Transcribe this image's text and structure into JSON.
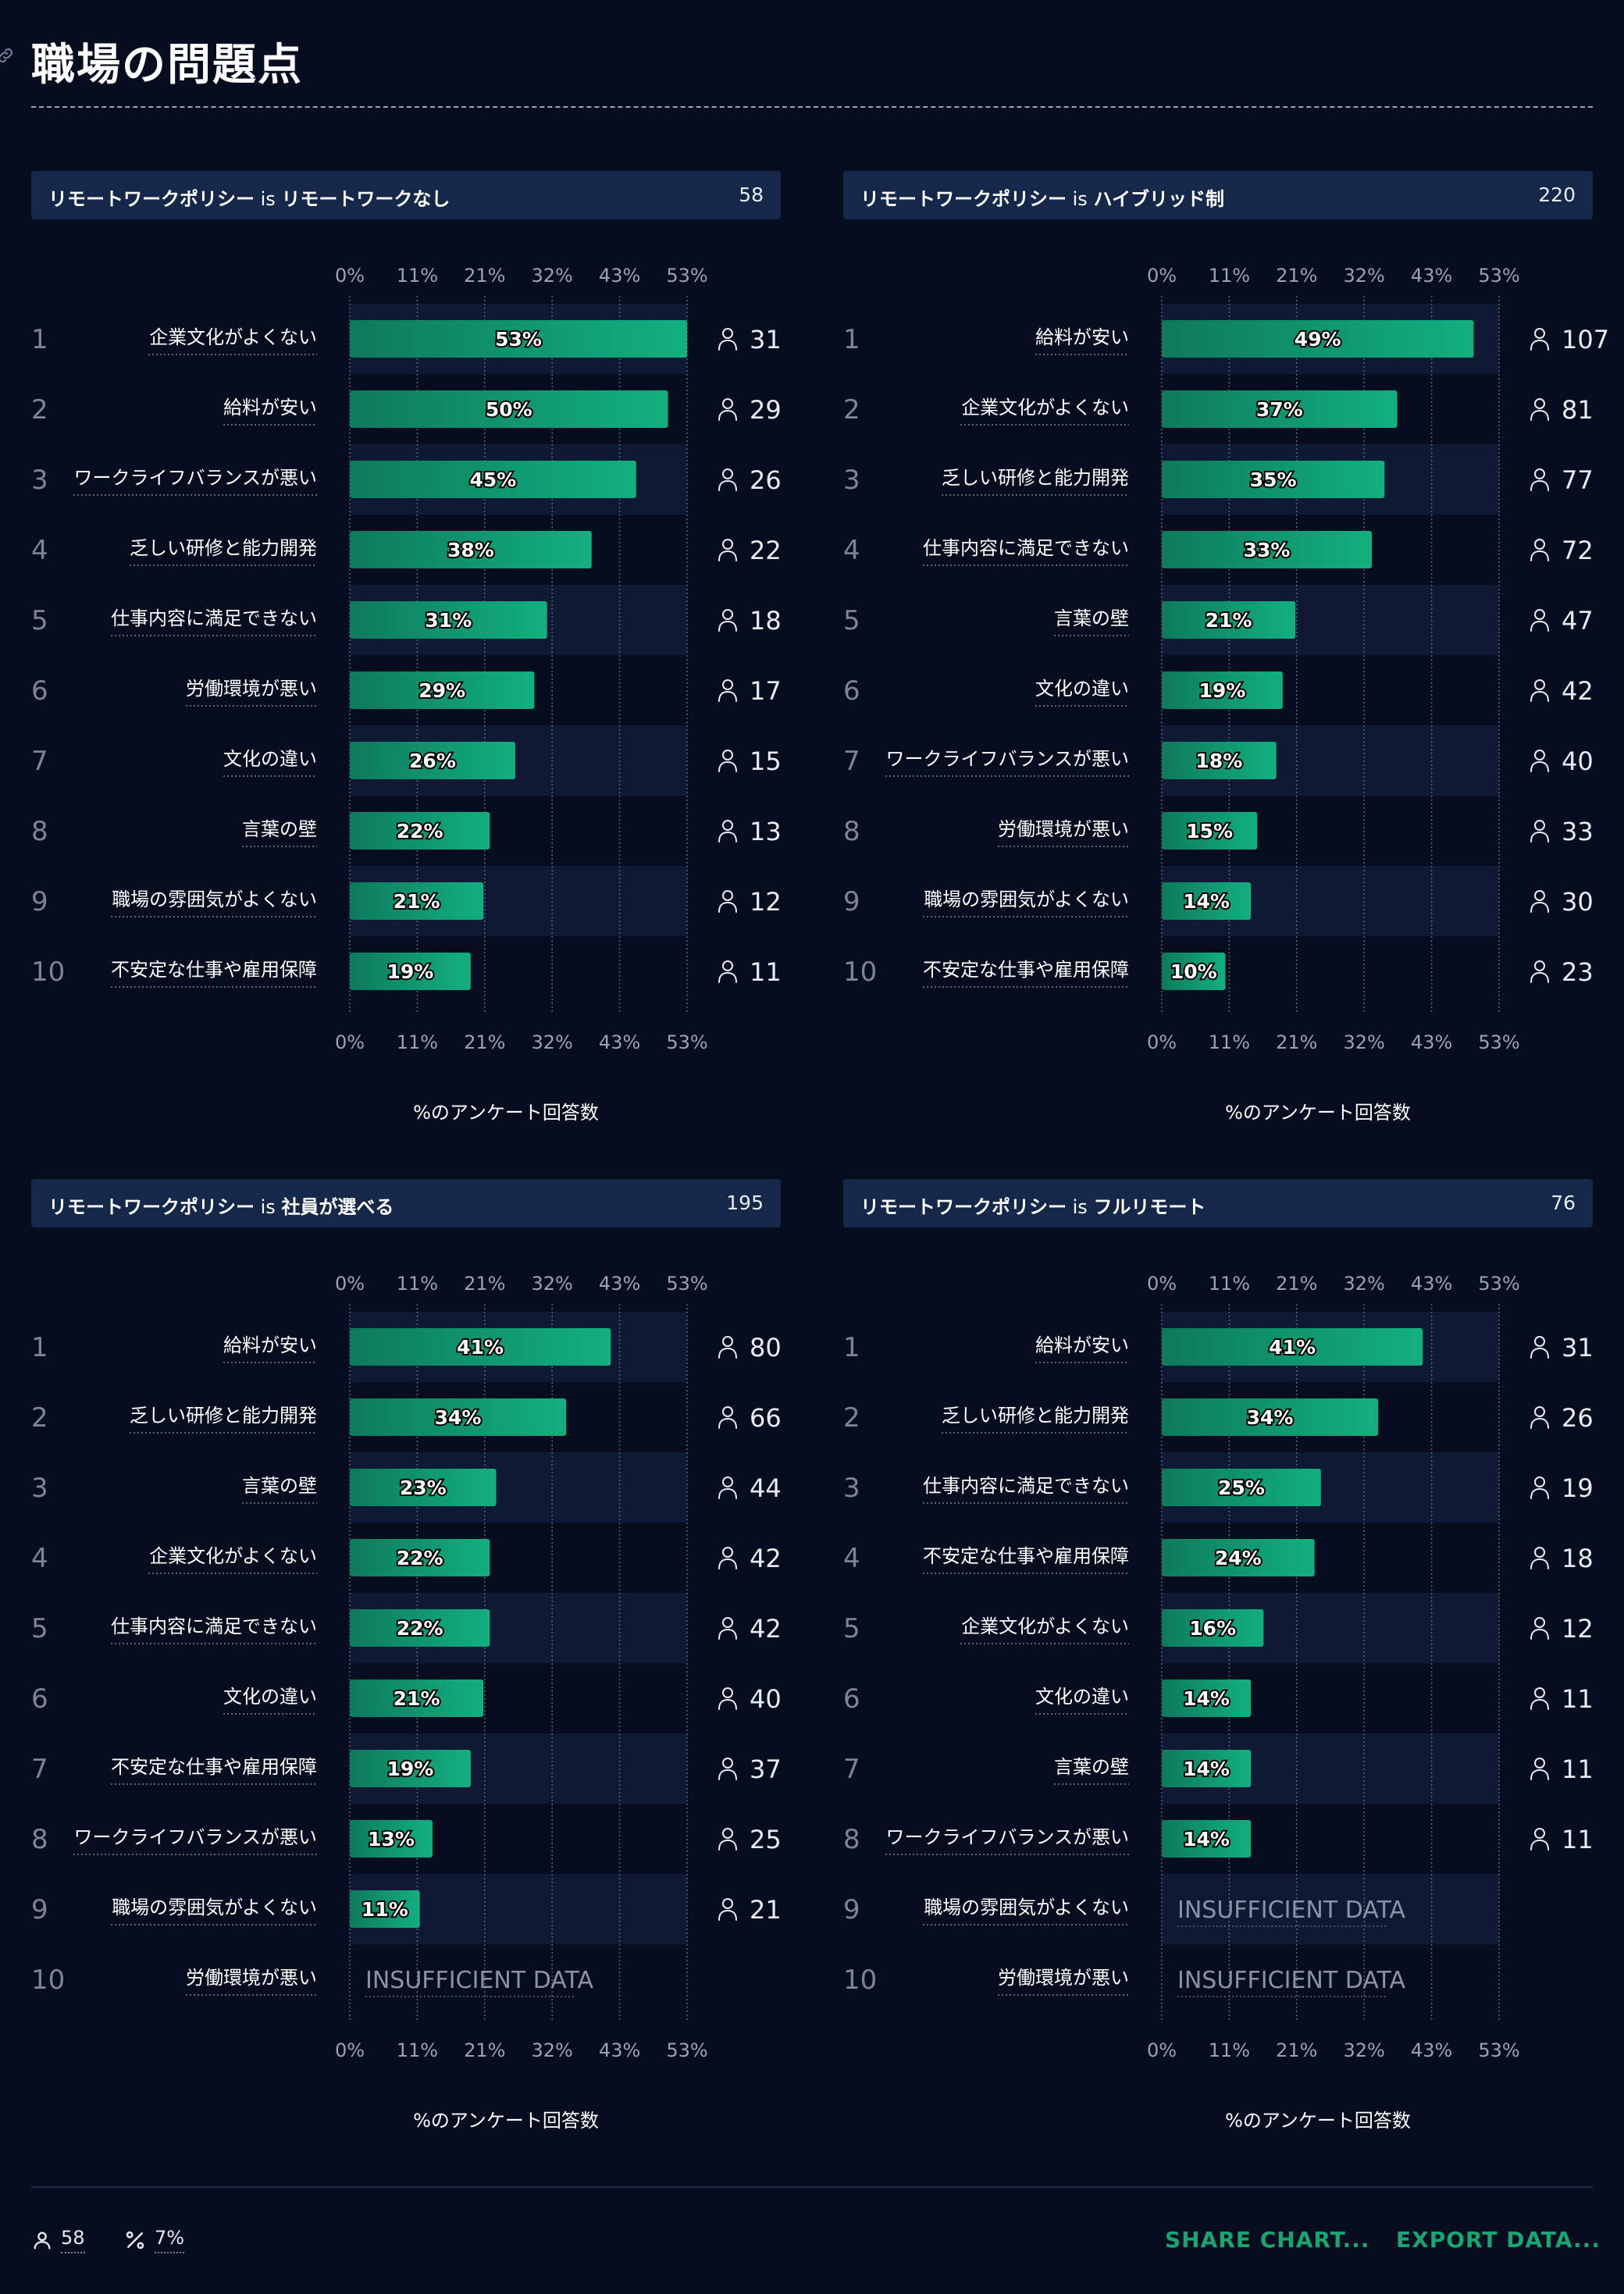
{
  "title": "職場の問題点",
  "colors": {
    "background": "#050d1f",
    "header": "#16284a",
    "band": "#0e1a33",
    "bar_start": "#0d7a5c",
    "bar_end": "#12b07f",
    "accent": "#18a571"
  },
  "icons": {
    "link": "link-icon",
    "respondents": "person-icon",
    "percent": "percent-icon"
  },
  "footer": {
    "respondents_value": "58",
    "percent_value": "7%",
    "share_label": "SHARE CHART...",
    "export_label": "EXPORT DATA..."
  },
  "chart_data": [
    {
      "type": "bar",
      "orientation": "horizontal",
      "filter_label": "リモートワークポリシー",
      "filter_op": "is",
      "filter_value": "リモートワークなし",
      "total": "58",
      "xlabel": "%のアンケート回答数",
      "xlim": [
        0,
        53
      ],
      "ticks": [
        "0%",
        "11%",
        "21%",
        "32%",
        "43%",
        "53%"
      ],
      "grid": true,
      "insufficient_label": "INSUFFICIENT DATA",
      "rows": [
        {
          "rank": "1",
          "label": "企業文化がよくない",
          "value": 53,
          "value_label": "53%",
          "count": "31"
        },
        {
          "rank": "2",
          "label": "給料が安い",
          "value": 50,
          "value_label": "50%",
          "count": "29"
        },
        {
          "rank": "3",
          "label": "ワークライフバランスが悪い",
          "value": 45,
          "value_label": "45%",
          "count": "26"
        },
        {
          "rank": "4",
          "label": "乏しい研修と能力開発",
          "value": 38,
          "value_label": "38%",
          "count": "22"
        },
        {
          "rank": "5",
          "label": "仕事内容に満足できない",
          "value": 31,
          "value_label": "31%",
          "count": "18"
        },
        {
          "rank": "6",
          "label": "労働環境が悪い",
          "value": 29,
          "value_label": "29%",
          "count": "17"
        },
        {
          "rank": "7",
          "label": "文化の違い",
          "value": 26,
          "value_label": "26%",
          "count": "15"
        },
        {
          "rank": "8",
          "label": "言葉の壁",
          "value": 22,
          "value_label": "22%",
          "count": "13"
        },
        {
          "rank": "9",
          "label": "職場の雰囲気がよくない",
          "value": 21,
          "value_label": "21%",
          "count": "12"
        },
        {
          "rank": "10",
          "label": "不安定な仕事や雇用保障",
          "value": 19,
          "value_label": "19%",
          "count": "11"
        }
      ]
    },
    {
      "type": "bar",
      "orientation": "horizontal",
      "filter_label": "リモートワークポリシー",
      "filter_op": "is",
      "filter_value": "ハイブリッド制",
      "total": "220",
      "xlabel": "%のアンケート回答数",
      "xlim": [
        0,
        53
      ],
      "ticks": [
        "0%",
        "11%",
        "21%",
        "32%",
        "43%",
        "53%"
      ],
      "grid": true,
      "insufficient_label": "INSUFFICIENT DATA",
      "rows": [
        {
          "rank": "1",
          "label": "給料が安い",
          "value": 49,
          "value_label": "49%",
          "count": "107"
        },
        {
          "rank": "2",
          "label": "企業文化がよくない",
          "value": 37,
          "value_label": "37%",
          "count": "81"
        },
        {
          "rank": "3",
          "label": "乏しい研修と能力開発",
          "value": 35,
          "value_label": "35%",
          "count": "77"
        },
        {
          "rank": "4",
          "label": "仕事内容に満足できない",
          "value": 33,
          "value_label": "33%",
          "count": "72"
        },
        {
          "rank": "5",
          "label": "言葉の壁",
          "value": 21,
          "value_label": "21%",
          "count": "47"
        },
        {
          "rank": "6",
          "label": "文化の違い",
          "value": 19,
          "value_label": "19%",
          "count": "42"
        },
        {
          "rank": "7",
          "label": "ワークライフバランスが悪い",
          "value": 18,
          "value_label": "18%",
          "count": "40"
        },
        {
          "rank": "8",
          "label": "労働環境が悪い",
          "value": 15,
          "value_label": "15%",
          "count": "33"
        },
        {
          "rank": "9",
          "label": "職場の雰囲気がよくない",
          "value": 14,
          "value_label": "14%",
          "count": "30"
        },
        {
          "rank": "10",
          "label": "不安定な仕事や雇用保障",
          "value": 10,
          "value_label": "10%",
          "count": "23"
        }
      ]
    },
    {
      "type": "bar",
      "orientation": "horizontal",
      "filter_label": "リモートワークポリシー",
      "filter_op": "is",
      "filter_value": "社員が選べる",
      "total": "195",
      "xlabel": "%のアンケート回答数",
      "xlim": [
        0,
        53
      ],
      "ticks": [
        "0%",
        "11%",
        "21%",
        "32%",
        "43%",
        "53%"
      ],
      "grid": true,
      "insufficient_label": "INSUFFICIENT DATA",
      "rows": [
        {
          "rank": "1",
          "label": "給料が安い",
          "value": 41,
          "value_label": "41%",
          "count": "80"
        },
        {
          "rank": "2",
          "label": "乏しい研修と能力開発",
          "value": 34,
          "value_label": "34%",
          "count": "66"
        },
        {
          "rank": "3",
          "label": "言葉の壁",
          "value": 23,
          "value_label": "23%",
          "count": "44"
        },
        {
          "rank": "4",
          "label": "企業文化がよくない",
          "value": 22,
          "value_label": "22%",
          "count": "42"
        },
        {
          "rank": "5",
          "label": "仕事内容に満足できない",
          "value": 22,
          "value_label": "22%",
          "count": "42"
        },
        {
          "rank": "6",
          "label": "文化の違い",
          "value": 21,
          "value_label": "21%",
          "count": "40"
        },
        {
          "rank": "7",
          "label": "不安定な仕事や雇用保障",
          "value": 19,
          "value_label": "19%",
          "count": "37"
        },
        {
          "rank": "8",
          "label": "ワークライフバランスが悪い",
          "value": 13,
          "value_label": "13%",
          "count": "25"
        },
        {
          "rank": "9",
          "label": "職場の雰囲気がよくない",
          "value": 11,
          "value_label": "11%",
          "count": "21"
        },
        {
          "rank": "10",
          "label": "労働環境が悪い",
          "value": null,
          "value_label": null,
          "count": null
        }
      ]
    },
    {
      "type": "bar",
      "orientation": "horizontal",
      "filter_label": "リモートワークポリシー",
      "filter_op": "is",
      "filter_value": "フルリモート",
      "total": "76",
      "xlabel": "%のアンケート回答数",
      "xlim": [
        0,
        53
      ],
      "ticks": [
        "0%",
        "11%",
        "21%",
        "32%",
        "43%",
        "53%"
      ],
      "grid": true,
      "insufficient_label": "INSUFFICIENT DATA",
      "rows": [
        {
          "rank": "1",
          "label": "給料が安い",
          "value": 41,
          "value_label": "41%",
          "count": "31"
        },
        {
          "rank": "2",
          "label": "乏しい研修と能力開発",
          "value": 34,
          "value_label": "34%",
          "count": "26"
        },
        {
          "rank": "3",
          "label": "仕事内容に満足できない",
          "value": 25,
          "value_label": "25%",
          "count": "19"
        },
        {
          "rank": "4",
          "label": "不安定な仕事や雇用保障",
          "value": 24,
          "value_label": "24%",
          "count": "18"
        },
        {
          "rank": "5",
          "label": "企業文化がよくない",
          "value": 16,
          "value_label": "16%",
          "count": "12"
        },
        {
          "rank": "6",
          "label": "文化の違い",
          "value": 14,
          "value_label": "14%",
          "count": "11"
        },
        {
          "rank": "7",
          "label": "言葉の壁",
          "value": 14,
          "value_label": "14%",
          "count": "11"
        },
        {
          "rank": "8",
          "label": "ワークライフバランスが悪い",
          "value": 14,
          "value_label": "14%",
          "count": "11"
        },
        {
          "rank": "9",
          "label": "職場の雰囲気がよくない",
          "value": null,
          "value_label": null,
          "count": null
        },
        {
          "rank": "10",
          "label": "労働環境が悪い",
          "value": null,
          "value_label": null,
          "count": null
        }
      ]
    }
  ]
}
